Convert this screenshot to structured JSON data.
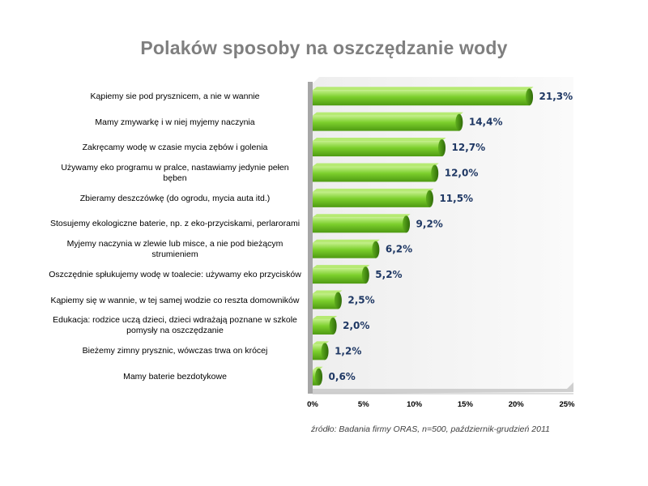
{
  "chart_data": {
    "type": "bar",
    "orientation": "horizontal",
    "title": "Polaków sposoby na oszczędzanie wody",
    "categories": [
      "Kąpiemy sie pod prysznicem, a nie w wannie",
      "Mamy zmywarkę i w niej myjemy naczynia",
      "Zakręcamy wodę w czasie mycia zębów i golenia",
      "Używamy eko programu w pralce, nastawiamy jedynie pełen bęben",
      "Zbieramy deszczówkę (do ogrodu, mycia auta itd.)",
      "Stosujemy ekologiczne baterie, np. z eko-przyciskami, perlarorami",
      "Myjemy naczynia w zlewie lub misce, a nie pod bieżącym strumieniem",
      "Oszczędnie spłukujemy wodę w toalecie: używamy eko przycisków",
      "Kąpiemy się w wannie, w tej samej wodzie co reszta domowników",
      "Edukacja: rodzice uczą dzieci, dzieci wdrażają poznane w szkole pomysły na oszczędzanie",
      "Bieżemy zimny prysznic, wówczas trwa on krócej",
      "Mamy baterie bezdotykowe"
    ],
    "values": [
      21.3,
      14.4,
      12.7,
      12.0,
      11.5,
      9.2,
      6.2,
      5.2,
      2.5,
      2.0,
      1.2,
      0.6
    ],
    "value_labels": [
      "21,3%",
      "14,4%",
      "12,7%",
      "12,0%",
      "11,5%",
      "9,2%",
      "6,2%",
      "5,2%",
      "2,5%",
      "2,0%",
      "1,2%",
      "0,6%"
    ],
    "x_ticks": [
      "0%",
      "5%",
      "10%",
      "15%",
      "20%",
      "25%"
    ],
    "xlim": [
      0,
      25
    ],
    "source": "źródło: Badania firmy ORAS, n=500, październik-grudzień 2011",
    "bar_color": "#7ccf2c",
    "value_label_color": "#1f3864",
    "title_color": "#7f7f7f",
    "grid": false,
    "legend": "none"
  }
}
